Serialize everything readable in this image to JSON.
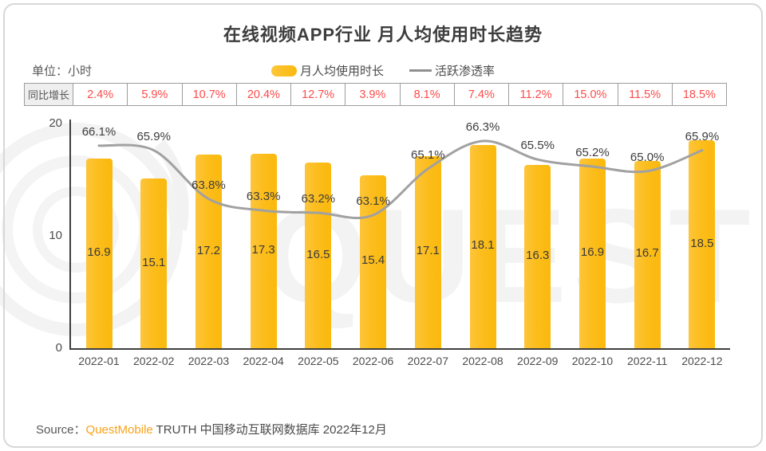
{
  "title": "在线视频APP行业 月人均使用时长趋势",
  "unit_label": "单位：小时",
  "legend": {
    "bar_label": "月人均使用时长",
    "line_label": "活跃渗透率"
  },
  "yoy_row": {
    "header": "同比增长",
    "values": [
      "2.4%",
      "5.9%",
      "10.7%",
      "20.4%",
      "12.7%",
      "3.9%",
      "8.1%",
      "7.4%",
      "11.2%",
      "15.0%",
      "11.5%",
      "18.5%"
    ]
  },
  "chart_data": {
    "type": "bar",
    "subtype": "bar+line combo",
    "title": "在线视频APP行业 月人均使用时长趋势",
    "categories": [
      "2022-01",
      "2022-02",
      "2022-03",
      "2022-04",
      "2022-05",
      "2022-06",
      "2022-07",
      "2022-08",
      "2022-09",
      "2022-10",
      "2022-11",
      "2022-12"
    ],
    "series": [
      {
        "name": "月人均使用时长",
        "type": "bar",
        "unit": "小时",
        "values": [
          16.9,
          15.1,
          17.2,
          17.3,
          16.5,
          15.4,
          17.1,
          18.1,
          16.3,
          16.9,
          16.7,
          18.5
        ]
      },
      {
        "name": "活跃渗透率",
        "type": "line",
        "unit": "%",
        "values": [
          66.1,
          65.9,
          63.8,
          63.3,
          63.2,
          63.1,
          65.1,
          66.3,
          65.5,
          65.2,
          65.0,
          65.9
        ]
      }
    ],
    "yoy_growth": [
      "2.4%",
      "5.9%",
      "10.7%",
      "20.4%",
      "12.7%",
      "3.9%",
      "8.1%",
      "7.4%",
      "11.2%",
      "15.0%",
      "11.5%",
      "18.5%"
    ],
    "ylabel": "小时",
    "xlabel": "",
    "y_ticks": [
      0,
      10,
      20
    ],
    "ylim": [
      0,
      20
    ],
    "grid": false,
    "legend_position": "top"
  },
  "source": {
    "prefix": "Source：",
    "brand": "QuestMobile",
    "suffix": " TRUTH 中国移动互联网数据库 2022年12月"
  },
  "watermark": "QUEST MOBILE",
  "colors": {
    "bar_yellow": "#FBBC1C",
    "line_gray": "#A1A1A1",
    "yoy_red": "#FB4B4B",
    "brand_orange": "#F9A21B",
    "axis": "#3F3F3F"
  }
}
